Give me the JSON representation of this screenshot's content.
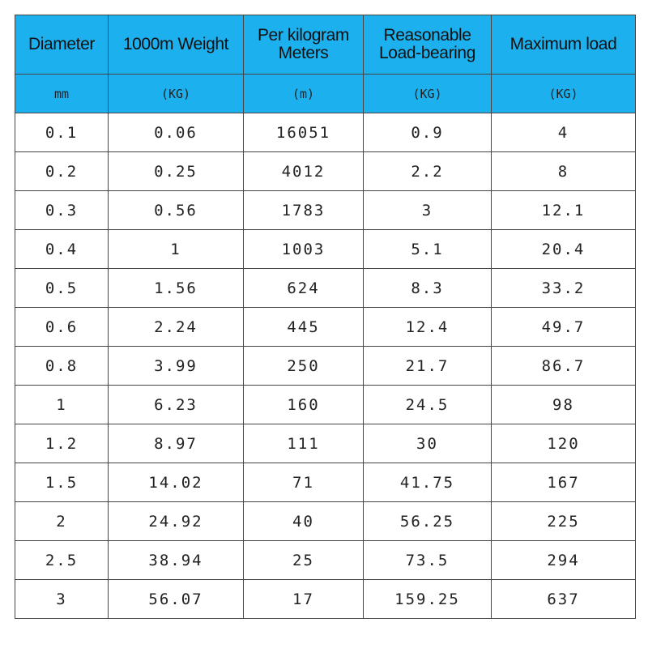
{
  "table": {
    "header": [
      "Diameter",
      "1000m Weight",
      "Per kilogram Meters",
      "Reasonable Load-bearing",
      "Maximum load"
    ],
    "units": [
      "mm",
      "(KG)",
      "(m)",
      "(KG)",
      "(KG)"
    ],
    "rows": [
      [
        "0.1",
        "0.06",
        "16051",
        "0.9",
        "4"
      ],
      [
        "0.2",
        "0.25",
        "4012",
        "2.2",
        "8"
      ],
      [
        "0.3",
        "0.56",
        "1783",
        "3",
        "12.1"
      ],
      [
        "0.4",
        "1",
        "1003",
        "5.1",
        "20.4"
      ],
      [
        "0.5",
        "1.56",
        "624",
        "8.3",
        "33.2"
      ],
      [
        "0.6",
        "2.24",
        "445",
        "12.4",
        "49.7"
      ],
      [
        "0.8",
        "3.99",
        "250",
        "21.7",
        "86.7"
      ],
      [
        "1",
        "6.23",
        "160",
        "24.5",
        "98"
      ],
      [
        "1.2",
        "8.97",
        "111",
        "30",
        "120"
      ],
      [
        "1.5",
        "14.02",
        "71",
        "41.75",
        "167"
      ],
      [
        "2",
        "24.92",
        "40",
        "56.25",
        "225"
      ],
      [
        "2.5",
        "38.94",
        "25",
        "73.5",
        "294"
      ],
      [
        "3",
        "56.07",
        "17",
        "159.25",
        "637"
      ]
    ]
  }
}
